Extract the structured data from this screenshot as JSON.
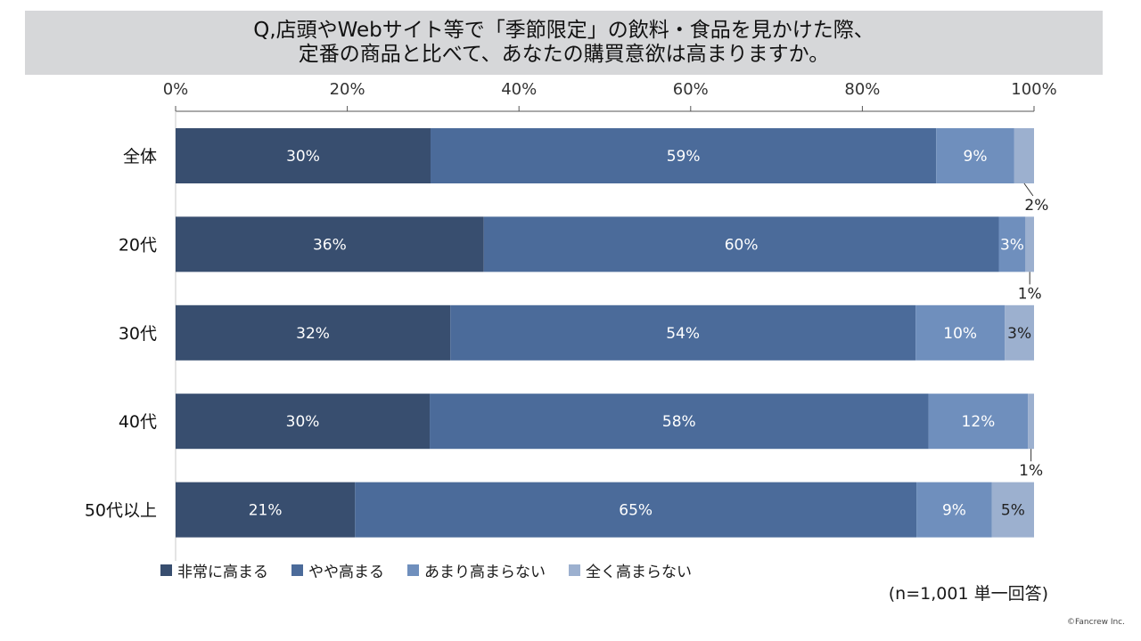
{
  "title": {
    "line1": "Q,店頭やWebサイト等で「季節限定」の飲料・食品を見かけた際、",
    "line2": "定番の商品と比べて、あなたの購買意欲は高まりますか。"
  },
  "chart_data": {
    "type": "bar",
    "orientation": "horizontal",
    "stacked": true,
    "categories": [
      "全体",
      "20代",
      "30代",
      "40代",
      "50代以上"
    ],
    "series": [
      {
        "name": "非常に高まる",
        "color": "#384e6f",
        "values": [
          29.7,
          35.9,
          32.0,
          29.6,
          20.9
        ],
        "labels": [
          "30%",
          "36%",
          "32%",
          "30%",
          "21%"
        ]
      },
      {
        "name": "やや高まる",
        "color": "#4b6b9a",
        "values": [
          58.9,
          60.0,
          54.2,
          58.1,
          65.4
        ],
        "labels": [
          "59%",
          "60%",
          "54%",
          "58%",
          "65%"
        ]
      },
      {
        "name": "あまり高まらない",
        "color": "#6f8fbd",
        "values": [
          9.1,
          3.1,
          10.4,
          11.6,
          8.8
        ],
        "labels": [
          "9%",
          "3%",
          "10%",
          "12%",
          "9%"
        ]
      },
      {
        "name": "全く高まらない",
        "color": "#9cb0cf",
        "values": [
          2.3,
          1.0,
          3.4,
          0.7,
          4.9
        ],
        "labels": [
          "2%",
          "1%",
          "3%",
          "1%",
          "5%"
        ]
      }
    ],
    "xlim": [
      0,
      100
    ],
    "xticks": [
      "0%",
      "20%",
      "40%",
      "60%",
      "80%",
      "100%"
    ],
    "axis_position": "top",
    "grid": false,
    "legend_position": "bottom-left"
  },
  "footnote": "(n=1,001 単一回答)",
  "copyright": "©Fancrew Inc."
}
